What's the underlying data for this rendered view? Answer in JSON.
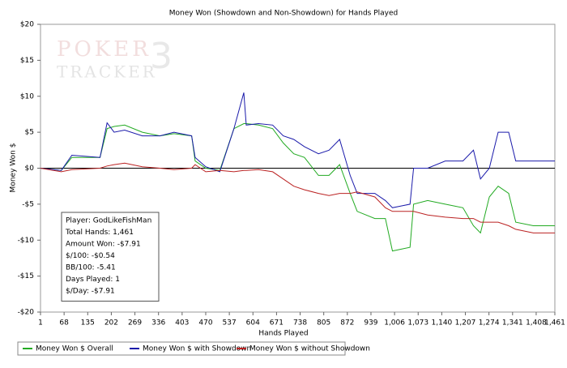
{
  "chart_data": {
    "type": "line",
    "title": "Money Won (Showdown and Non-Showdown) for Hands Played",
    "x_label": "Hands Played",
    "y_label": "Money Won $",
    "watermark": [
      "POKER",
      "TRACKER",
      "3"
    ],
    "x": [
      1,
      60,
      90,
      170,
      190,
      210,
      240,
      290,
      340,
      380,
      430,
      440,
      470,
      510,
      550,
      578,
      585,
      620,
      660,
      690,
      720,
      750,
      790,
      820,
      850,
      880,
      900,
      950,
      980,
      1000,
      1050,
      1060,
      1100,
      1150,
      1200,
      1230,
      1250,
      1275,
      1300,
      1330,
      1350,
      1400,
      1461
    ],
    "series": [
      {
        "name": "Money Won $ Overall",
        "color": "#22aa22",
        "values": [
          0,
          -0.3,
          1.5,
          1.5,
          5.5,
          5.8,
          6,
          5,
          4.5,
          4.8,
          4.5,
          1,
          0,
          -0.3,
          5.5,
          6.2,
          6.2,
          6,
          5.5,
          3.5,
          2,
          1.5,
          -1,
          -1,
          0.5,
          -3.5,
          -6,
          -7,
          -7,
          -11.5,
          -11,
          -5,
          -4.5,
          -5,
          -5.5,
          -8,
          -9,
          -4,
          -2.5,
          -3.5,
          -7.5,
          -8,
          -8
        ]
      },
      {
        "name": "Money Won $ with Showdown",
        "color": "#1a1aaa",
        "values": [
          0,
          -0.3,
          1.8,
          1.5,
          6.3,
          5,
          5.3,
          4.5,
          4.5,
          5,
          4.5,
          1.5,
          0.2,
          -0.5,
          5.5,
          10.5,
          6,
          6.2,
          6,
          4.5,
          4,
          3,
          2,
          2.5,
          4,
          -1,
          -3.5,
          -3.5,
          -4.5,
          -5.5,
          -5,
          0,
          0,
          1,
          1,
          2.5,
          -1.5,
          0,
          5,
          5,
          1,
          1,
          1
        ]
      },
      {
        "name": "Money Won $ without Showdown",
        "color": "#bb2222",
        "values": [
          0,
          -0.5,
          -0.2,
          0,
          0.3,
          0.5,
          0.7,
          0.2,
          0,
          -0.2,
          0,
          0.5,
          -0.5,
          -0.3,
          -0.5,
          -0.3,
          -0.3,
          -0.2,
          -0.5,
          -1.5,
          -2.5,
          -3,
          -3.5,
          -3.8,
          -3.5,
          -3.5,
          -3.3,
          -4,
          -5.5,
          -6,
          -6,
          -6,
          -6.5,
          -6.8,
          -7,
          -7,
          -7.5,
          -7.5,
          -7.5,
          -8,
          -8.5,
          -9,
          -9
        ]
      }
    ],
    "xlim": [
      1,
      1461
    ],
    "xticks": [
      1,
      68,
      135,
      202,
      269,
      336,
      403,
      470,
      537,
      604,
      671,
      738,
      805,
      872,
      939,
      {
        "value": 1006,
        "label": "1,006"
      },
      {
        "value": 1073,
        "label": "1,073"
      },
      {
        "value": 1140,
        "label": "1,140"
      },
      {
        "value": 1207,
        "label": "1,207"
      },
      {
        "value": 1274,
        "label": "1,274"
      },
      {
        "value": 1341,
        "label": "1,341"
      },
      {
        "value": 1408,
        "label": "1,408"
      },
      {
        "value": 1461,
        "label": "1,461"
      }
    ],
    "ylim": [
      -20,
      20
    ],
    "yticks": [
      {
        "value": -20,
        "label": "-$20"
      },
      {
        "value": -15,
        "label": "-$15"
      },
      {
        "value": -10,
        "label": "-$10"
      },
      {
        "value": -5,
        "label": "-$5"
      },
      {
        "value": 0,
        "label": "$0"
      },
      {
        "value": 5,
        "label": "$5"
      },
      {
        "value": 10,
        "label": "$10"
      },
      {
        "value": 15,
        "label": "$15"
      },
      {
        "value": 20,
        "label": "$20"
      }
    ],
    "info_box": [
      "Player: GodLikeFishMan",
      "Total Hands: 1,461",
      "Amount Won: -$7.91",
      "$/100: -$0.54",
      "BB/100: -5.41",
      "Days Played: 1",
      "$/Day: -$7.91"
    ]
  }
}
